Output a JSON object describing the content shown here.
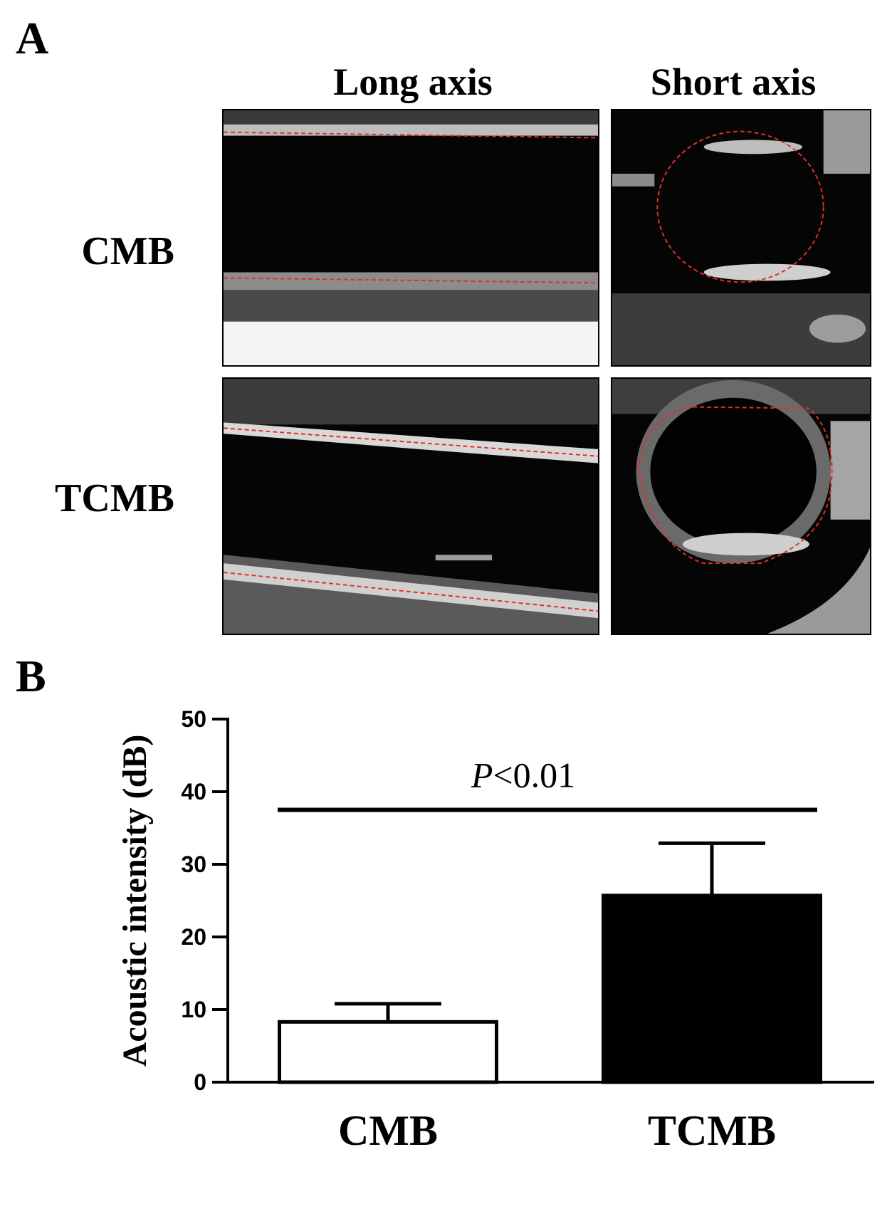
{
  "panel_a": {
    "label": "A",
    "columns": [
      "Long axis",
      "Short axis"
    ],
    "rows": [
      "CMB",
      "TCMB"
    ]
  },
  "panel_b": {
    "label": "B"
  },
  "colors": {
    "outline_trace": "#e0302c",
    "cmb_bar": "#ffffff",
    "tcmb_bar": "#000000"
  },
  "chart_data": {
    "type": "bar",
    "categories": [
      "CMB",
      "TCMB"
    ],
    "values": [
      8.3,
      25.7
    ],
    "errors": [
      2.5,
      7.2
    ],
    "ylabel": "Acoustic intensity (dB)",
    "ylim": [
      0,
      50
    ],
    "yticks": [
      0,
      10,
      20,
      30,
      40,
      50
    ],
    "annotation": {
      "text_italic": "P",
      "text_rest": "<0.01",
      "y": 37.5
    },
    "grid": false,
    "legend": "none"
  }
}
